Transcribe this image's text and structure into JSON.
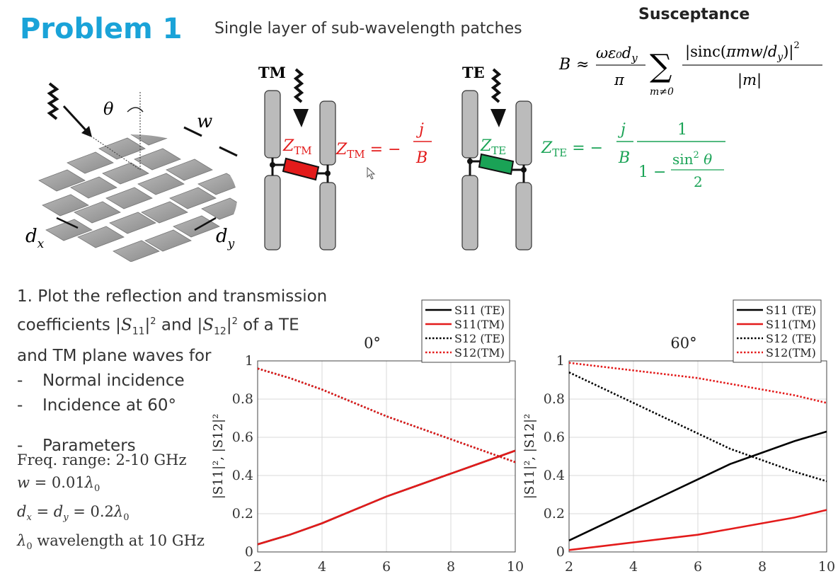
{
  "header": {
    "title": "Problem 1",
    "subtitle": "Single layer of sub-wavelength patches",
    "susceptance_title": "Susceptance"
  },
  "formulas": {
    "susceptance": "B ≈ (ωε₀d_y/π) Σ_{m≠0} |sinc(πmw/d_y)|² / |m|",
    "z_tm": "Z_TM = −j/B",
    "z_te": "Z_TE = −(j/B)·1/(1 − sin²θ/2)"
  },
  "diagram": {
    "tm_label": "TM",
    "te_label": "TE",
    "z_tm_label": "Z_TM",
    "z_te_label": "Z_TE",
    "theta": "θ",
    "w": "w",
    "dx": "d_x",
    "dy": "d_y"
  },
  "task": {
    "line1": "1. Plot the reflection and transmission",
    "line2": "coefficients |S11|² and |S12|² of a TE",
    "line3": "and TM plane waves for",
    "bullets": [
      "Normal incidence",
      "Incidence at 60°",
      "Parameters"
    ],
    "params": [
      "Freq. range: 2-10 GHz",
      "w = 0.01λ0",
      "dx = dy = 0.2λ0",
      "λ0 wavelength at 10 GHz"
    ]
  },
  "chart_data": [
    {
      "type": "line",
      "title": "0°",
      "xlabel": "",
      "ylabel": "|S11|², |S12|²",
      "xlim": [
        2,
        10
      ],
      "ylim": [
        0,
        1
      ],
      "xticks": [
        2,
        4,
        6,
        8,
        10
      ],
      "yticks": [
        0,
        0.2,
        0.4,
        0.6,
        0.8,
        1
      ],
      "grid": true,
      "legend": "top-right",
      "x": [
        2,
        3,
        4,
        5,
        6,
        7,
        8,
        9,
        10
      ],
      "series": [
        {
          "name": "S11 (TE)",
          "color": "#000000",
          "dash": "solid",
          "values": [
            0.04,
            0.09,
            0.15,
            0.22,
            0.29,
            0.35,
            0.41,
            0.47,
            0.53
          ]
        },
        {
          "name": "S11(TM)",
          "color": "#e31b1b",
          "dash": "solid",
          "values": [
            0.04,
            0.09,
            0.15,
            0.22,
            0.29,
            0.35,
            0.41,
            0.47,
            0.53
          ]
        },
        {
          "name": "S12 (TE)",
          "color": "#000000",
          "dash": "dotted",
          "values": [
            0.96,
            0.91,
            0.85,
            0.78,
            0.71,
            0.65,
            0.59,
            0.53,
            0.47
          ]
        },
        {
          "name": "S12(TM)",
          "color": "#e31b1b",
          "dash": "dotted",
          "values": [
            0.96,
            0.91,
            0.85,
            0.78,
            0.71,
            0.65,
            0.59,
            0.53,
            0.47
          ]
        }
      ]
    },
    {
      "type": "line",
      "title": "60°",
      "xlabel": "",
      "ylabel": "|S11|², |S12|²",
      "xlim": [
        2,
        10
      ],
      "ylim": [
        0,
        1
      ],
      "xticks": [
        2,
        4,
        6,
        8,
        10
      ],
      "yticks": [
        0,
        0.2,
        0.4,
        0.6,
        0.8,
        1
      ],
      "grid": true,
      "legend": "top-right",
      "x": [
        2,
        3,
        4,
        5,
        6,
        7,
        8,
        9,
        10
      ],
      "series": [
        {
          "name": "S11 (TE)",
          "color": "#000000",
          "dash": "solid",
          "values": [
            0.06,
            0.14,
            0.22,
            0.3,
            0.38,
            0.46,
            0.52,
            0.58,
            0.63
          ]
        },
        {
          "name": "S11(TM)",
          "color": "#e31b1b",
          "dash": "solid",
          "values": [
            0.01,
            0.03,
            0.05,
            0.07,
            0.09,
            0.12,
            0.15,
            0.18,
            0.22
          ]
        },
        {
          "name": "S12 (TE)",
          "color": "#000000",
          "dash": "dotted",
          "values": [
            0.94,
            0.86,
            0.78,
            0.7,
            0.62,
            0.54,
            0.48,
            0.42,
            0.37
          ]
        },
        {
          "name": "S12(TM)",
          "color": "#e31b1b",
          "dash": "dotted",
          "values": [
            0.99,
            0.97,
            0.95,
            0.93,
            0.91,
            0.88,
            0.85,
            0.82,
            0.78
          ]
        }
      ]
    }
  ]
}
